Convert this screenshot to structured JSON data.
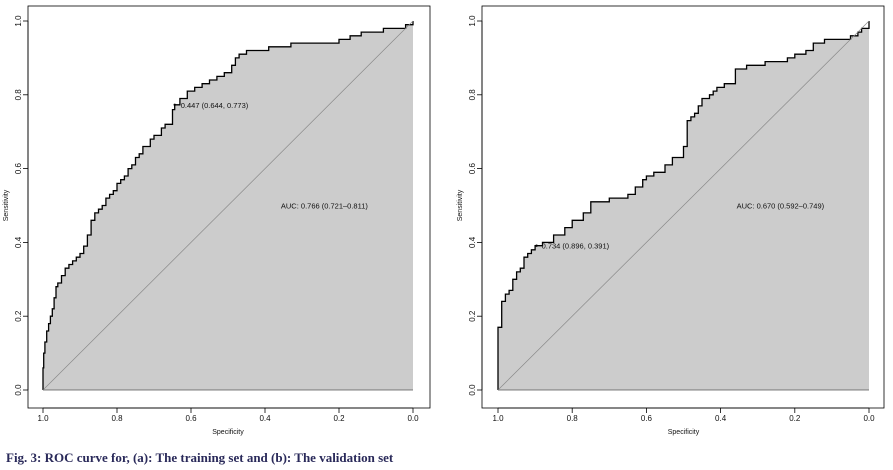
{
  "caption": "Fig. 3: ROC curve for, (a): The training set and (b): The validation set",
  "chart_data": [
    {
      "type": "line",
      "xlabel": "Specificity",
      "ylabel": "Sensitivity",
      "xlim": [
        1.0,
        0.0
      ],
      "ylim": [
        0.0,
        1.0
      ],
      "x_ticks": [
        "1.0",
        "0.8",
        "0.6",
        "0.4",
        "0.2",
        "0.0"
      ],
      "y_ticks": [
        "0.0",
        "0.2",
        "0.4",
        "0.6",
        "0.8",
        "1.0"
      ],
      "colors": {
        "curve": "#000000",
        "fill": "#cccccc",
        "diagonal": "#8a8a8a"
      },
      "curve": {
        "specificity": [
          1.0,
          1.0,
          0.998,
          0.995,
          0.99,
          0.985,
          0.98,
          0.975,
          0.97,
          0.965,
          0.96,
          0.95,
          0.94,
          0.93,
          0.92,
          0.91,
          0.9,
          0.89,
          0.88,
          0.87,
          0.86,
          0.85,
          0.84,
          0.83,
          0.82,
          0.81,
          0.8,
          0.79,
          0.78,
          0.77,
          0.76,
          0.75,
          0.74,
          0.73,
          0.72,
          0.71,
          0.7,
          0.69,
          0.68,
          0.67,
          0.66,
          0.65,
          0.644,
          0.63,
          0.61,
          0.59,
          0.57,
          0.55,
          0.53,
          0.51,
          0.49,
          0.48,
          0.47,
          0.45,
          0.42,
          0.39,
          0.36,
          0.33,
          0.3,
          0.25,
          0.2,
          0.17,
          0.14,
          0.11,
          0.08,
          0.05,
          0.02,
          0.0
        ],
        "sensitivity": [
          0.0,
          0.06,
          0.1,
          0.13,
          0.16,
          0.18,
          0.2,
          0.22,
          0.25,
          0.28,
          0.29,
          0.31,
          0.33,
          0.34,
          0.35,
          0.36,
          0.37,
          0.39,
          0.42,
          0.46,
          0.48,
          0.49,
          0.5,
          0.52,
          0.53,
          0.54,
          0.56,
          0.57,
          0.58,
          0.6,
          0.61,
          0.63,
          0.64,
          0.66,
          0.66,
          0.68,
          0.69,
          0.69,
          0.71,
          0.72,
          0.72,
          0.76,
          0.773,
          0.79,
          0.81,
          0.82,
          0.83,
          0.84,
          0.85,
          0.86,
          0.88,
          0.9,
          0.91,
          0.92,
          0.92,
          0.93,
          0.93,
          0.94,
          0.94,
          0.94,
          0.95,
          0.96,
          0.97,
          0.97,
          0.98,
          0.98,
          0.99,
          1.0
        ]
      },
      "threshold_point": {
        "specificity": 0.644,
        "sensitivity": 0.773,
        "label": "0.447 (0.644, 0.773)"
      },
      "auc_label": "AUC: 0.766 (0.721–0.811)"
    },
    {
      "type": "line",
      "xlabel": "Specificity",
      "ylabel": "Sensitivity",
      "xlim": [
        1.0,
        0.0
      ],
      "ylim": [
        0.0,
        1.0
      ],
      "x_ticks": [
        "1.0",
        "0.8",
        "0.6",
        "0.4",
        "0.2",
        "0.0"
      ],
      "y_ticks": [
        "0.0",
        "0.2",
        "0.4",
        "0.6",
        "0.8",
        "1.0"
      ],
      "colors": {
        "curve": "#000000",
        "fill": "#cccccc",
        "diagonal": "#8a8a8a"
      },
      "curve": {
        "specificity": [
          1.0,
          1.0,
          0.99,
          0.99,
          0.98,
          0.98,
          0.97,
          0.96,
          0.96,
          0.95,
          0.94,
          0.93,
          0.93,
          0.92,
          0.91,
          0.9,
          0.9,
          0.896,
          0.88,
          0.85,
          0.82,
          0.8,
          0.77,
          0.75,
          0.72,
          0.7,
          0.68,
          0.65,
          0.63,
          0.61,
          0.6,
          0.58,
          0.55,
          0.53,
          0.5,
          0.49,
          0.49,
          0.48,
          0.47,
          0.46,
          0.45,
          0.43,
          0.42,
          0.41,
          0.39,
          0.36,
          0.35,
          0.33,
          0.3,
          0.28,
          0.25,
          0.22,
          0.2,
          0.17,
          0.15,
          0.12,
          0.08,
          0.05,
          0.03,
          0.02,
          0.0
        ],
        "sensitivity": [
          0.0,
          0.17,
          0.18,
          0.24,
          0.25,
          0.26,
          0.27,
          0.28,
          0.3,
          0.32,
          0.33,
          0.34,
          0.36,
          0.37,
          0.38,
          0.39,
          0.391,
          0.391,
          0.4,
          0.42,
          0.44,
          0.46,
          0.48,
          0.51,
          0.51,
          0.52,
          0.52,
          0.53,
          0.55,
          0.57,
          0.58,
          0.59,
          0.61,
          0.63,
          0.66,
          0.71,
          0.73,
          0.74,
          0.75,
          0.77,
          0.79,
          0.8,
          0.81,
          0.82,
          0.83,
          0.87,
          0.87,
          0.88,
          0.88,
          0.89,
          0.89,
          0.9,
          0.91,
          0.92,
          0.94,
          0.95,
          0.95,
          0.96,
          0.97,
          0.98,
          1.0
        ]
      },
      "threshold_point": {
        "specificity": 0.896,
        "sensitivity": 0.391,
        "label": "0.734 (0.896, 0.391)"
      },
      "auc_label": "AUC: 0.670 (0.592–0.749)"
    }
  ]
}
